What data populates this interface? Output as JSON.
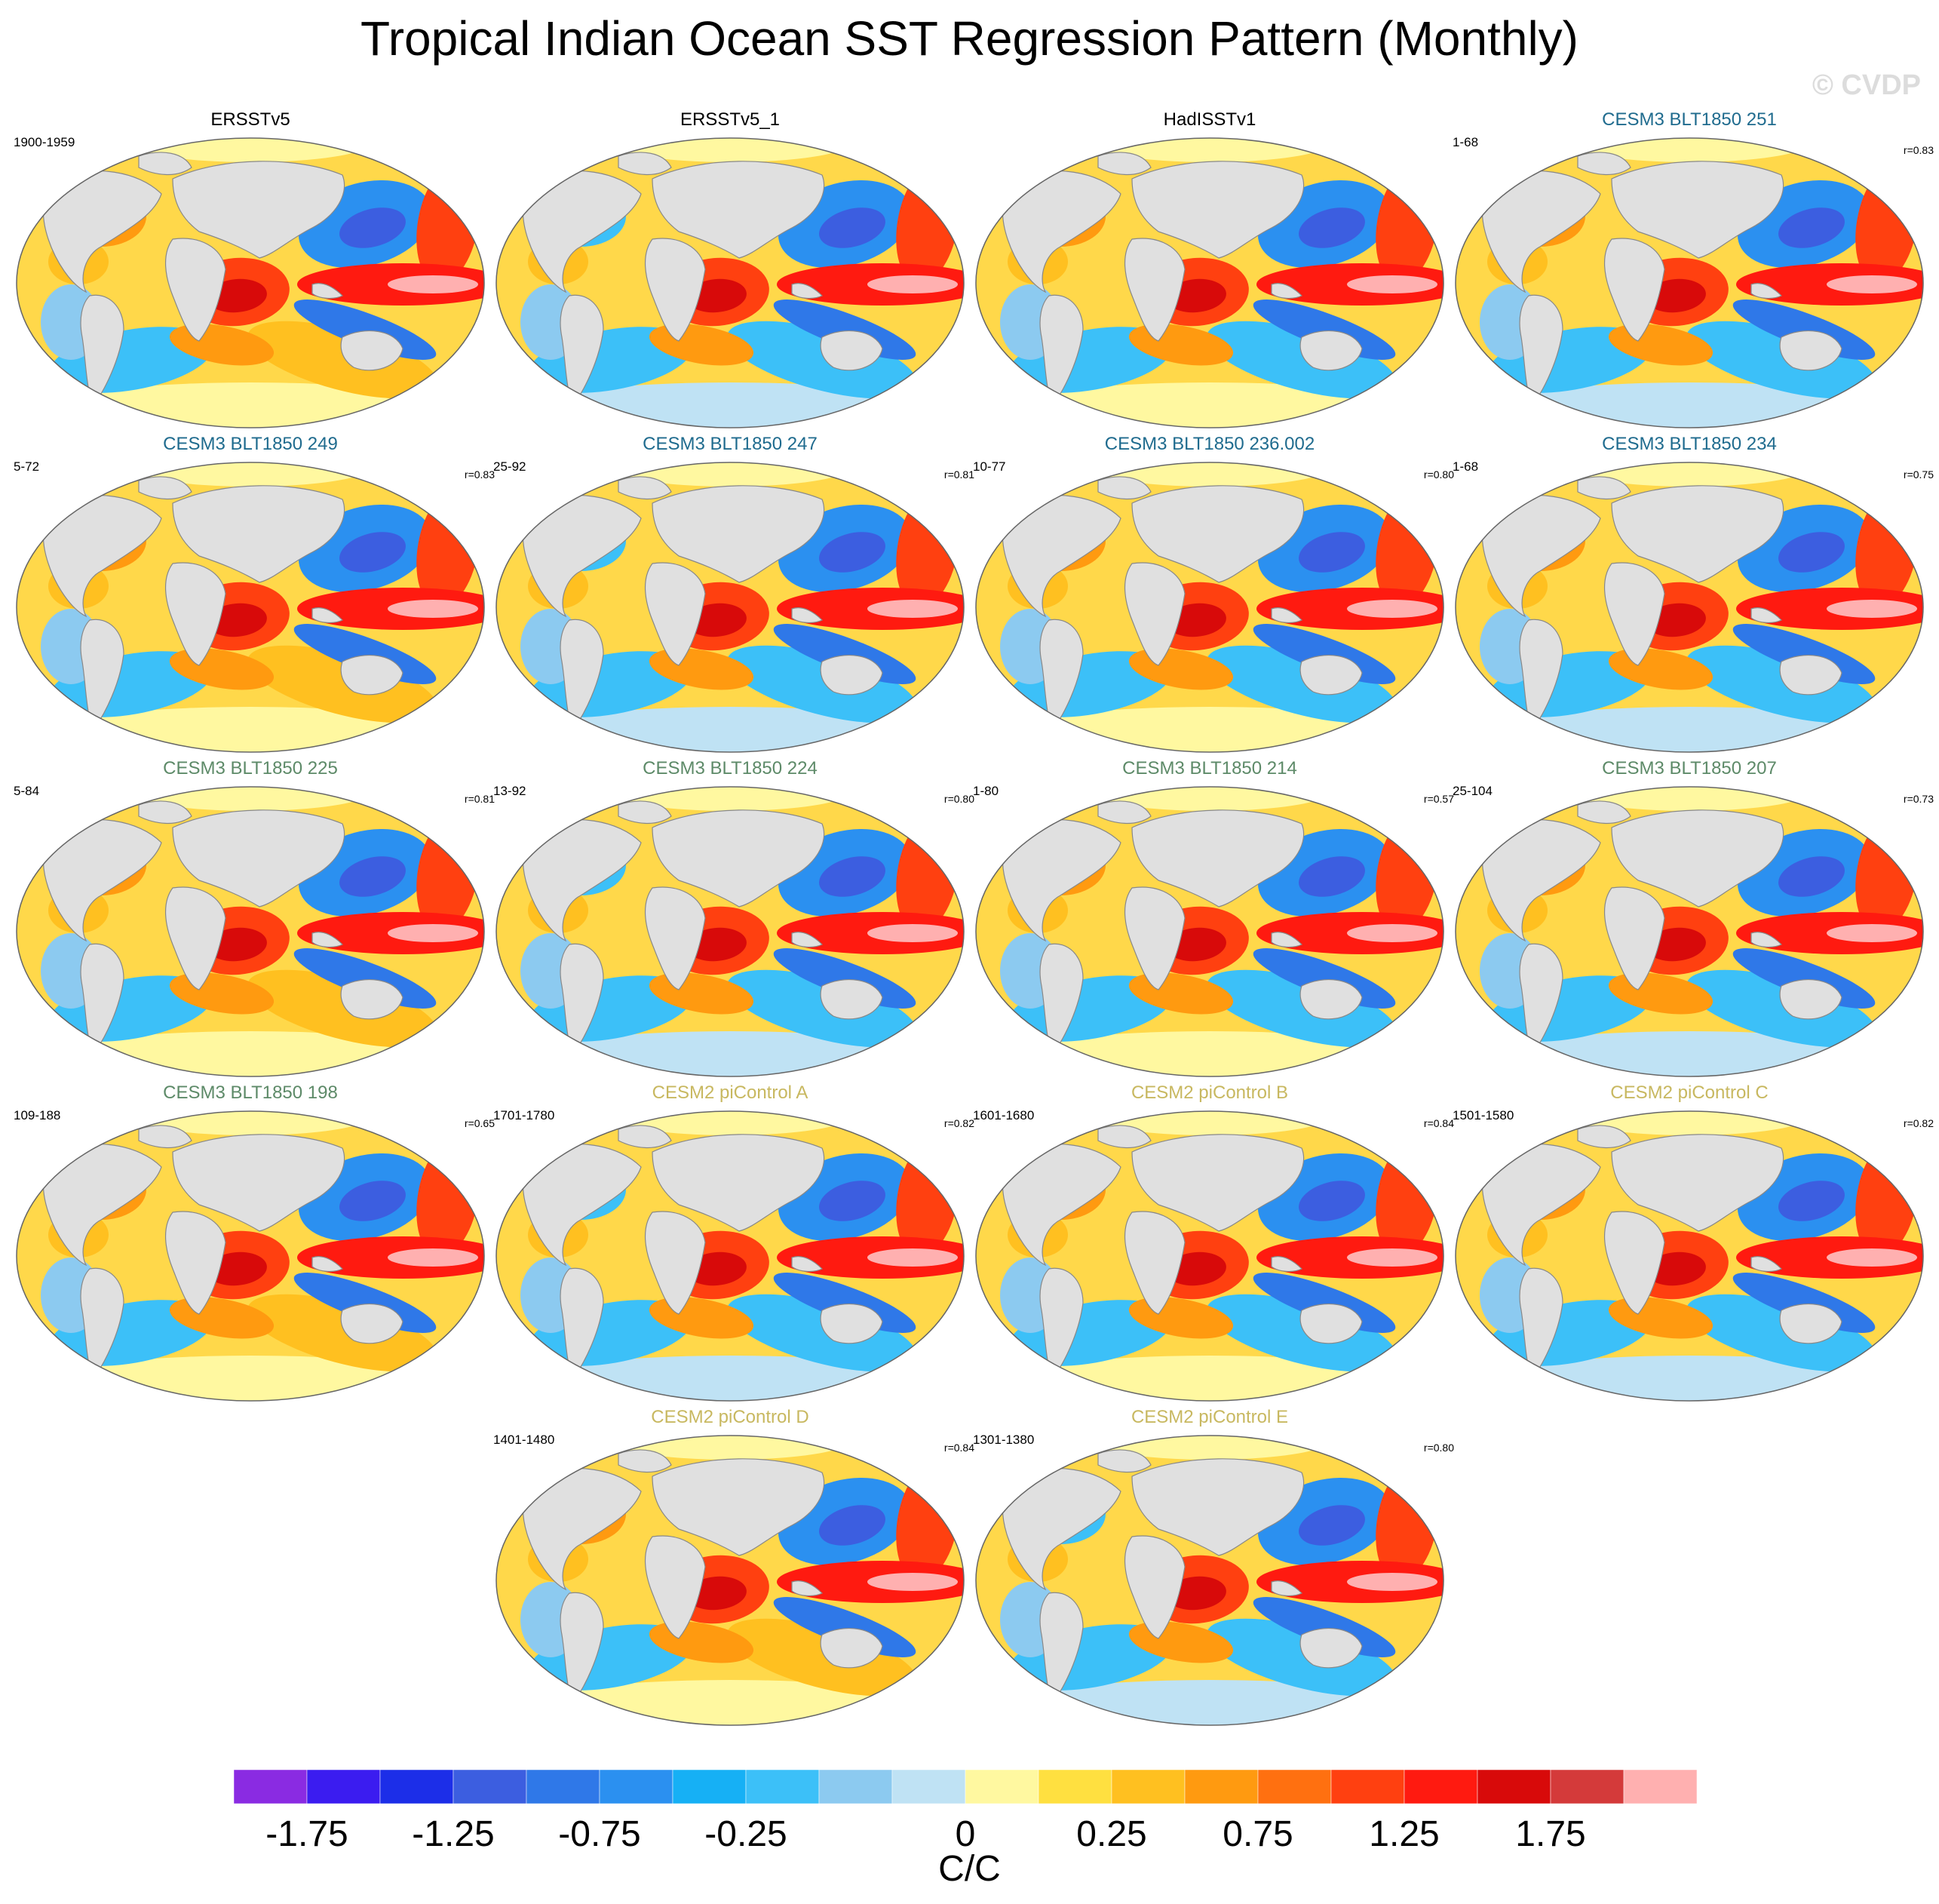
{
  "title": "Tropical Indian Ocean SST Regression Pattern (Monthly)",
  "watermark": "© CVDP",
  "colors": {
    "obs_title": "#000000",
    "blt_dark": "#1f6b8e",
    "blt_green": "#5d8a68",
    "picontrol": "#c8b860",
    "land": "#e0e0e0",
    "outline": "#888888"
  },
  "panels": [
    {
      "title": "ERSSTv5",
      "period": "1900-1959",
      "r": "",
      "group": "obs"
    },
    {
      "title": "ERSSTv5_1",
      "period": "",
      "r": "",
      "group": "obs"
    },
    {
      "title": "HadISSTv1",
      "period": "",
      "r": "",
      "group": "obs"
    },
    {
      "title": "CESM3 BLT1850 251",
      "period": "1-68",
      "r": "r=0.83",
      "group": "blt_dark"
    },
    {
      "title": "CESM3 BLT1850 249",
      "period": "5-72",
      "r": "r=0.83",
      "group": "blt_dark"
    },
    {
      "title": "CESM3 BLT1850 247",
      "period": "25-92",
      "r": "r=0.81",
      "group": "blt_dark"
    },
    {
      "title": "CESM3 BLT1850 236.002",
      "period": "10-77",
      "r": "r=0.80",
      "group": "blt_dark"
    },
    {
      "title": "CESM3 BLT1850 234",
      "period": "1-68",
      "r": "r=0.75",
      "group": "blt_dark"
    },
    {
      "title": "CESM3 BLT1850 225",
      "period": "5-84",
      "r": "r=0.81",
      "group": "blt_green"
    },
    {
      "title": "CESM3 BLT1850 224",
      "period": "13-92",
      "r": "r=0.80",
      "group": "blt_green"
    },
    {
      "title": "CESM3 BLT1850 214",
      "period": "1-80",
      "r": "r=0.57",
      "group": "blt_green"
    },
    {
      "title": "CESM3 BLT1850 207",
      "period": "25-104",
      "r": "r=0.73",
      "group": "blt_green"
    },
    {
      "title": "CESM3 BLT1850 198",
      "period": "109-188",
      "r": "r=0.65",
      "group": "blt_green"
    },
    {
      "title": "CESM2 piControl A",
      "period": "1701-1780",
      "r": "r=0.82",
      "group": "picontrol"
    },
    {
      "title": "CESM2 piControl B",
      "period": "1601-1680",
      "r": "r=0.84",
      "group": "picontrol"
    },
    {
      "title": "CESM2 piControl C",
      "period": "1501-1580",
      "r": "r=0.82",
      "group": "picontrol"
    },
    {
      "title": "CESM2 piControl D",
      "period": "1401-1480",
      "r": "r=0.84",
      "group": "picontrol"
    },
    {
      "title": "CESM2 piControl E",
      "period": "1301-1380",
      "r": "r=0.80",
      "group": "picontrol"
    }
  ],
  "colorbar": {
    "colors": [
      "#8a2be2",
      "#3b1cf0",
      "#1c2ee8",
      "#3c5ee0",
      "#2f78e8",
      "#2b90f0",
      "#16b0f5",
      "#3cc0f8",
      "#8ccaf0",
      "#bfe2f4",
      "#fff8a0",
      "#ffe040",
      "#ffc020",
      "#ff9a10",
      "#ff7010",
      "#ff4010",
      "#ff1a10",
      "#d80a0a",
      "#d43a3a",
      "#ffb0b0"
    ],
    "tick_labels": [
      "-1.75",
      "-1.25",
      "-0.75",
      "-0.25",
      "0",
      "0.25",
      "0.75",
      "1.25",
      "1.75"
    ],
    "tick_box_boundaries": [
      1,
      3,
      5,
      7,
      10,
      12,
      14,
      16,
      18
    ],
    "units": "C/C"
  }
}
